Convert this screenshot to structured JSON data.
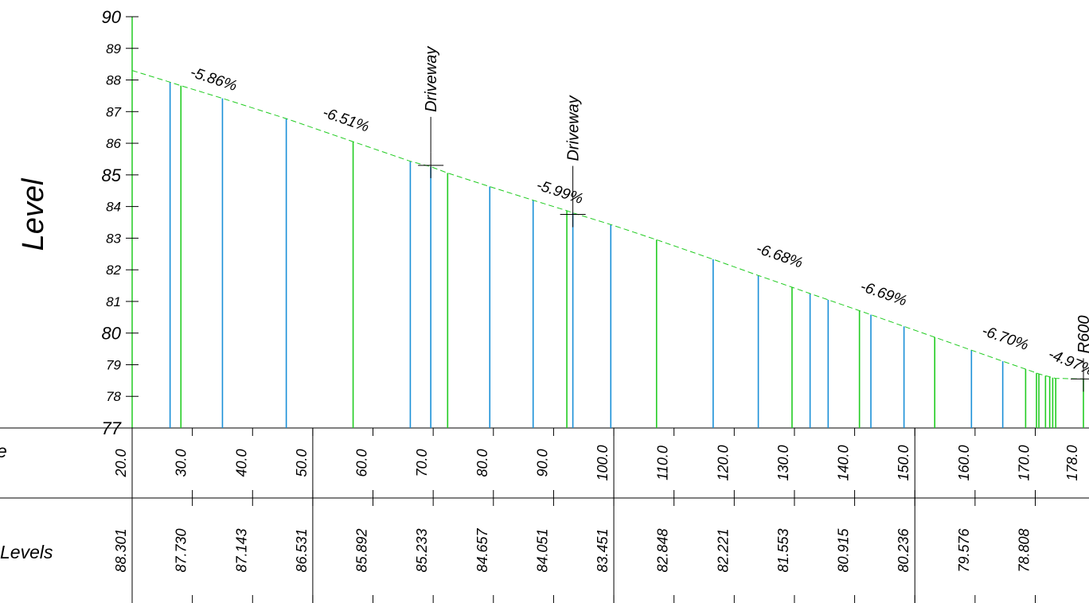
{
  "chart_data": {
    "type": "line",
    "ylabel": "Level",
    "ylim": [
      77,
      90
    ],
    "y_ticks": [
      {
        "v": 90,
        "t": "90",
        "big": true
      },
      {
        "v": 89,
        "t": "89",
        "big": false
      },
      {
        "v": 88,
        "t": "88",
        "big": false
      },
      {
        "v": 87,
        "t": "87",
        "big": false
      },
      {
        "v": 86,
        "t": "86",
        "big": false
      },
      {
        "v": 85,
        "t": "85",
        "big": true
      },
      {
        "v": 84,
        "t": "84",
        "big": false
      },
      {
        "v": 83,
        "t": "83",
        "big": false
      },
      {
        "v": 82,
        "t": "82",
        "big": false
      },
      {
        "v": 81,
        "t": "81",
        "big": false
      },
      {
        "v": 80,
        "t": "80",
        "big": true
      },
      {
        "v": 79,
        "t": "79",
        "big": false
      },
      {
        "v": 78,
        "t": "78",
        "big": false
      },
      {
        "v": 77,
        "t": "77",
        "big": true
      }
    ],
    "xlim": [
      20,
      178
    ],
    "series": [
      {
        "x": [
          20.0,
          26.3,
          28.1,
          35.0,
          45.6,
          56.7,
          66.2,
          69.6,
          72.4,
          79.4,
          86.6,
          92.2,
          93.2,
          99.5,
          107.1,
          116.5,
          124.0,
          129.6,
          132.6,
          135.6,
          140.8,
          142.7,
          148.2,
          153.3,
          159.4,
          164.6,
          168.4,
          170.2,
          170.6,
          171.7,
          172.4,
          172.9,
          173.4,
          178.0
        ],
        "y": [
          88.301,
          87.93,
          87.82,
          87.42,
          86.78,
          86.05,
          85.43,
          85.26,
          85.06,
          84.63,
          84.2,
          83.87,
          83.8,
          83.43,
          82.95,
          82.33,
          81.82,
          81.45,
          81.25,
          81.05,
          80.71,
          80.58,
          80.21,
          79.87,
          79.46,
          79.11,
          78.86,
          78.74,
          78.71,
          78.65,
          78.62,
          78.59,
          78.57,
          78.55
        ],
        "color": "#1a90d8"
      }
    ],
    "grades": [
      {
        "label": "-5.86%",
        "x": 29.5,
        "y": 88.12,
        "angle": 18
      },
      {
        "label": "-6.51%",
        "x": 51.5,
        "y": 86.85,
        "angle": 19
      },
      {
        "label": "-5.99%",
        "x": 87.0,
        "y": 84.55,
        "angle": 18
      },
      {
        "label": "-6.68%",
        "x": 123.5,
        "y": 82.55,
        "angle": 19
      },
      {
        "label": "-6.69%",
        "x": 140.8,
        "y": 81.35,
        "angle": 19
      },
      {
        "label": "-6.70%",
        "x": 161.0,
        "y": 79.95,
        "angle": 19
      },
      {
        "label": "-4.97%",
        "x": 172.0,
        "y": 79.22,
        "angle": 22
      }
    ],
    "features": [
      {
        "label": "Driveway",
        "x": 69.6,
        "level": 85.3
      },
      {
        "label": "Driveway",
        "x": 93.2,
        "level": 83.75
      },
      {
        "label": "R600",
        "x": 178.0,
        "level": 78.55
      }
    ],
    "rows": {
      "chainage_label": "e",
      "levels_label": "Levels",
      "chainages": [
        {
          "x": 20,
          "t": "20.0"
        },
        {
          "x": 30,
          "t": "30.0"
        },
        {
          "x": 40,
          "t": "40.0"
        },
        {
          "x": 50,
          "t": "50.0"
        },
        {
          "x": 60,
          "t": "60.0"
        },
        {
          "x": 70,
          "t": "70.0"
        },
        {
          "x": 80,
          "t": "80.0"
        },
        {
          "x": 90,
          "t": "90.0"
        },
        {
          "x": 100,
          "t": "100.0"
        },
        {
          "x": 110,
          "t": "110.0"
        },
        {
          "x": 120,
          "t": "120.0"
        },
        {
          "x": 130,
          "t": "130.0"
        },
        {
          "x": 140,
          "t": "140.0"
        },
        {
          "x": 150,
          "t": "150.0"
        },
        {
          "x": 160,
          "t": "160.0"
        },
        {
          "x": 170,
          "t": "170.0"
        },
        {
          "x": 178,
          "t": "178.0"
        }
      ],
      "levels": [
        {
          "x": 20,
          "t": "88.301"
        },
        {
          "x": 30,
          "t": "87.730"
        },
        {
          "x": 40,
          "t": "87.143"
        },
        {
          "x": 50,
          "t": "86.531"
        },
        {
          "x": 60,
          "t": "85.892"
        },
        {
          "x": 70,
          "t": "85.233"
        },
        {
          "x": 80,
          "t": "84.657"
        },
        {
          "x": 90,
          "t": "84.051"
        },
        {
          "x": 100,
          "t": "83.451"
        },
        {
          "x": 110,
          "t": "82.848"
        },
        {
          "x": 120,
          "t": "82.221"
        },
        {
          "x": 130,
          "t": "81.553"
        },
        {
          "x": 140,
          "t": "80.915"
        },
        {
          "x": 150,
          "t": "80.236"
        },
        {
          "x": 160,
          "t": "79.576"
        },
        {
          "x": 170,
          "t": "78.808"
        }
      ]
    },
    "colors": {
      "design": "#22cc22",
      "existing": "#1a90d8",
      "axis": "#000000"
    }
  }
}
